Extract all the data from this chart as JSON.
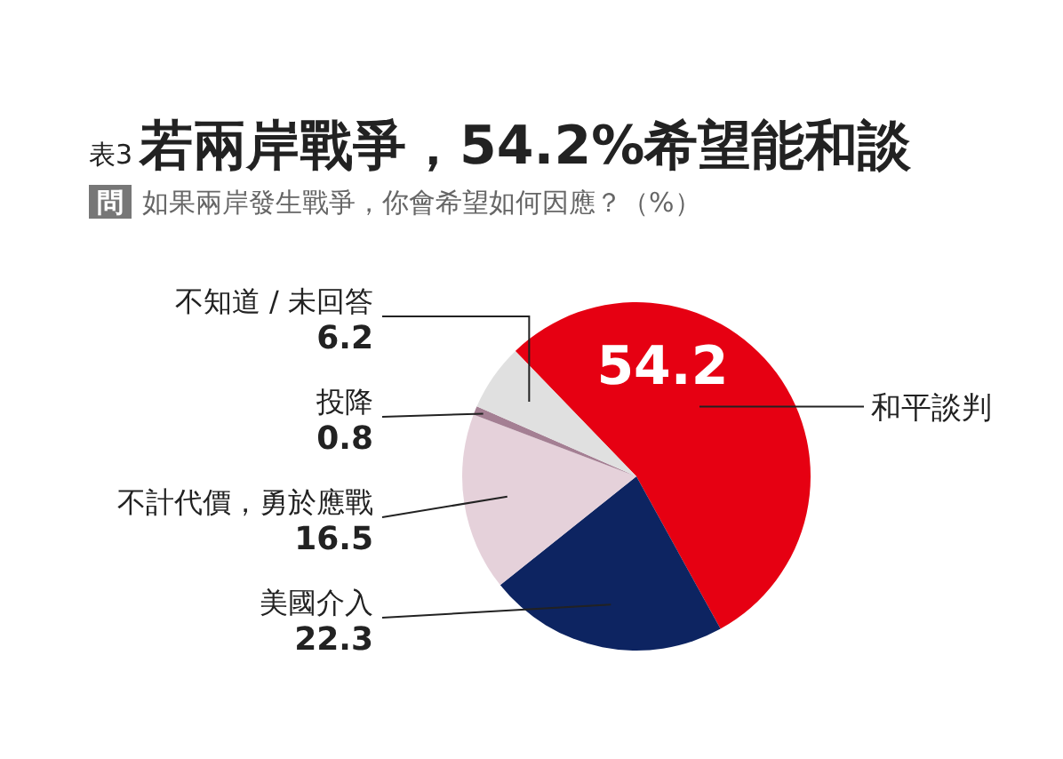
{
  "chart_data": {
    "type": "pie",
    "title": "若兩岸戰爭，54.2%希望能和談",
    "subtitle": "如果兩岸發生戰爭，你會希望如何因應？（%）",
    "annotations": [
      "表3",
      "問"
    ],
    "categories": [
      "和平談判",
      "美國介入",
      "不計代價，勇於應戰",
      "投降",
      "不知道 / 未回答"
    ],
    "values": [
      54.2,
      22.3,
      16.5,
      0.8,
      6.2
    ],
    "colors": [
      "#e60012",
      "#0d2461",
      "#e5d1da",
      "#a47f93",
      "#e0e0e0"
    ],
    "data_labels": true
  }
}
